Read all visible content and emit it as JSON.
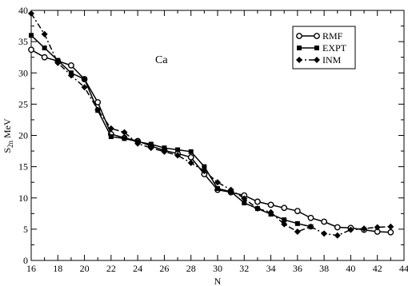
{
  "chart_data": {
    "type": "line",
    "title": "",
    "xlabel": "N",
    "ylabel_main": "S",
    "ylabel_sub": "2n",
    "ylabel_unit": "MeV",
    "xlim": [
      16,
      44
    ],
    "ylim": [
      0,
      40
    ],
    "xticks": [
      16,
      18,
      20,
      22,
      24,
      26,
      28,
      30,
      32,
      34,
      36,
      38,
      40,
      42,
      44
    ],
    "yticks": [
      0,
      5,
      10,
      15,
      20,
      25,
      30,
      35,
      40
    ],
    "grid": false,
    "legend_position": "top-right",
    "annotation": "Ca",
    "series": [
      {
        "name": "RMF",
        "marker": "open-circle",
        "line": "solid",
        "x": [
          16,
          17,
          18,
          19,
          20,
          21,
          22,
          23,
          24,
          25,
          26,
          27,
          28,
          29,
          30,
          31,
          32,
          33,
          34,
          35,
          36,
          37,
          38,
          39,
          40,
          41,
          42,
          43
        ],
        "y": [
          33.7,
          32.5,
          31.9,
          31.2,
          29.0,
          25.3,
          20.2,
          19.6,
          19.1,
          18.3,
          17.6,
          17.1,
          16.5,
          13.8,
          11.3,
          10.9,
          10.4,
          9.4,
          8.9,
          8.4,
          7.9,
          6.8,
          6.2,
          5.3,
          5.2,
          4.9,
          4.6,
          4.5
        ]
      },
      {
        "name": "EXPT",
        "marker": "filled-square",
        "line": "solid",
        "x": [
          16,
          17,
          18,
          19,
          20,
          21,
          22,
          23,
          24,
          25,
          26,
          27,
          28,
          29,
          30,
          31,
          32,
          33,
          34,
          35,
          36,
          37
        ],
        "y": [
          36.0,
          34.0,
          32.0,
          30.0,
          29.0,
          24.0,
          19.8,
          19.5,
          19.0,
          18.6,
          18.0,
          17.7,
          17.4,
          15.0,
          11.5,
          11.0,
          9.2,
          8.3,
          7.4,
          6.5,
          5.9,
          5.4
        ]
      },
      {
        "name": "INM",
        "marker": "filled-diamond",
        "line": "dash-dot",
        "x": [
          16,
          17,
          18,
          19,
          20,
          21,
          22,
          23,
          24,
          25,
          26,
          27,
          28,
          29,
          30,
          31,
          32,
          33,
          34,
          35,
          36,
          37,
          38,
          39,
          40,
          41,
          42,
          43
        ],
        "y": [
          39.5,
          36.2,
          31.6,
          29.6,
          27.7,
          24.1,
          21.1,
          20.5,
          18.7,
          18.0,
          17.4,
          16.8,
          15.6,
          14.3,
          12.5,
          11.3,
          9.9,
          8.3,
          7.7,
          5.8,
          4.6,
          5.4,
          4.3,
          4.0,
          4.9,
          5.1,
          5.3,
          5.4
        ]
      }
    ]
  }
}
